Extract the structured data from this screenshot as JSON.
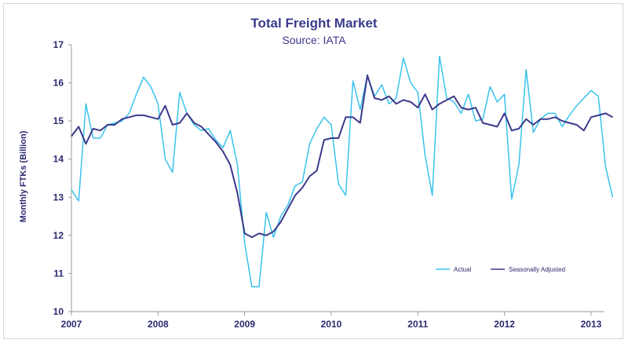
{
  "chart_data": {
    "type": "line",
    "title": "Total Freight Market",
    "subtitle": "Source: IATA",
    "xlabel": "",
    "ylabel": "Monthly FTKs (Billion)",
    "ylim": [
      10,
      17
    ],
    "yticks": [
      10,
      11,
      12,
      13,
      14,
      15,
      16,
      17
    ],
    "xlim": [
      2007,
      2013.1
    ],
    "xtick_labels": [
      "2007",
      "2008",
      "2009",
      "2010",
      "2011",
      "2012",
      "2013"
    ],
    "grid": false,
    "legend_position": "bottom-right",
    "series": [
      {
        "name": "Actual",
        "color": "#38c3ec",
        "values": [
          13.2,
          12.9,
          15.45,
          14.55,
          14.55,
          14.9,
          14.95,
          15.0,
          15.2,
          15.7,
          16.15,
          15.9,
          15.45,
          14.0,
          13.65,
          15.75,
          15.2,
          14.9,
          14.75,
          14.8,
          14.5,
          14.3,
          14.75,
          13.85,
          11.8,
          10.65,
          10.65,
          12.6,
          11.95,
          12.5,
          12.8,
          13.3,
          13.4,
          14.4,
          14.8,
          15.1,
          14.9,
          13.35,
          13.05,
          16.05,
          15.3,
          16.2,
          15.65,
          15.95,
          15.45,
          15.6,
          16.65,
          16.0,
          15.75,
          14.1,
          13.05,
          16.7,
          15.6,
          15.5,
          15.2,
          15.7,
          15.0,
          15.05,
          15.9,
          15.5,
          15.7,
          12.95,
          13.85,
          16.35,
          14.7,
          15.05,
          15.2,
          15.2,
          14.85,
          15.15,
          15.4,
          15.6,
          15.8,
          15.65,
          13.8,
          13.0
        ]
      },
      {
        "name": "Seasonally Adjusted",
        "color": "#3b3a8c",
        "values": [
          14.6,
          14.85,
          14.4,
          14.8,
          14.75,
          14.9,
          14.9,
          15.05,
          15.1,
          15.15,
          15.15,
          15.1,
          15.05,
          15.4,
          14.9,
          14.95,
          15.2,
          14.95,
          14.85,
          14.65,
          14.45,
          14.2,
          13.85,
          13.1,
          12.05,
          11.95,
          12.05,
          12.0,
          12.1,
          12.35,
          12.7,
          13.05,
          13.25,
          13.55,
          13.7,
          14.5,
          14.55,
          14.55,
          15.1,
          15.1,
          14.95,
          16.2,
          15.6,
          15.55,
          15.65,
          15.45,
          15.55,
          15.5,
          15.35,
          15.7,
          15.3,
          15.45,
          15.55,
          15.65,
          15.35,
          15.3,
          15.35,
          14.95,
          14.9,
          14.85,
          15.2,
          14.75,
          14.8,
          15.05,
          14.9,
          15.05,
          15.05,
          15.1,
          15.0,
          14.95,
          14.9,
          14.75,
          15.1,
          15.15,
          15.2,
          15.1
        ]
      }
    ]
  }
}
